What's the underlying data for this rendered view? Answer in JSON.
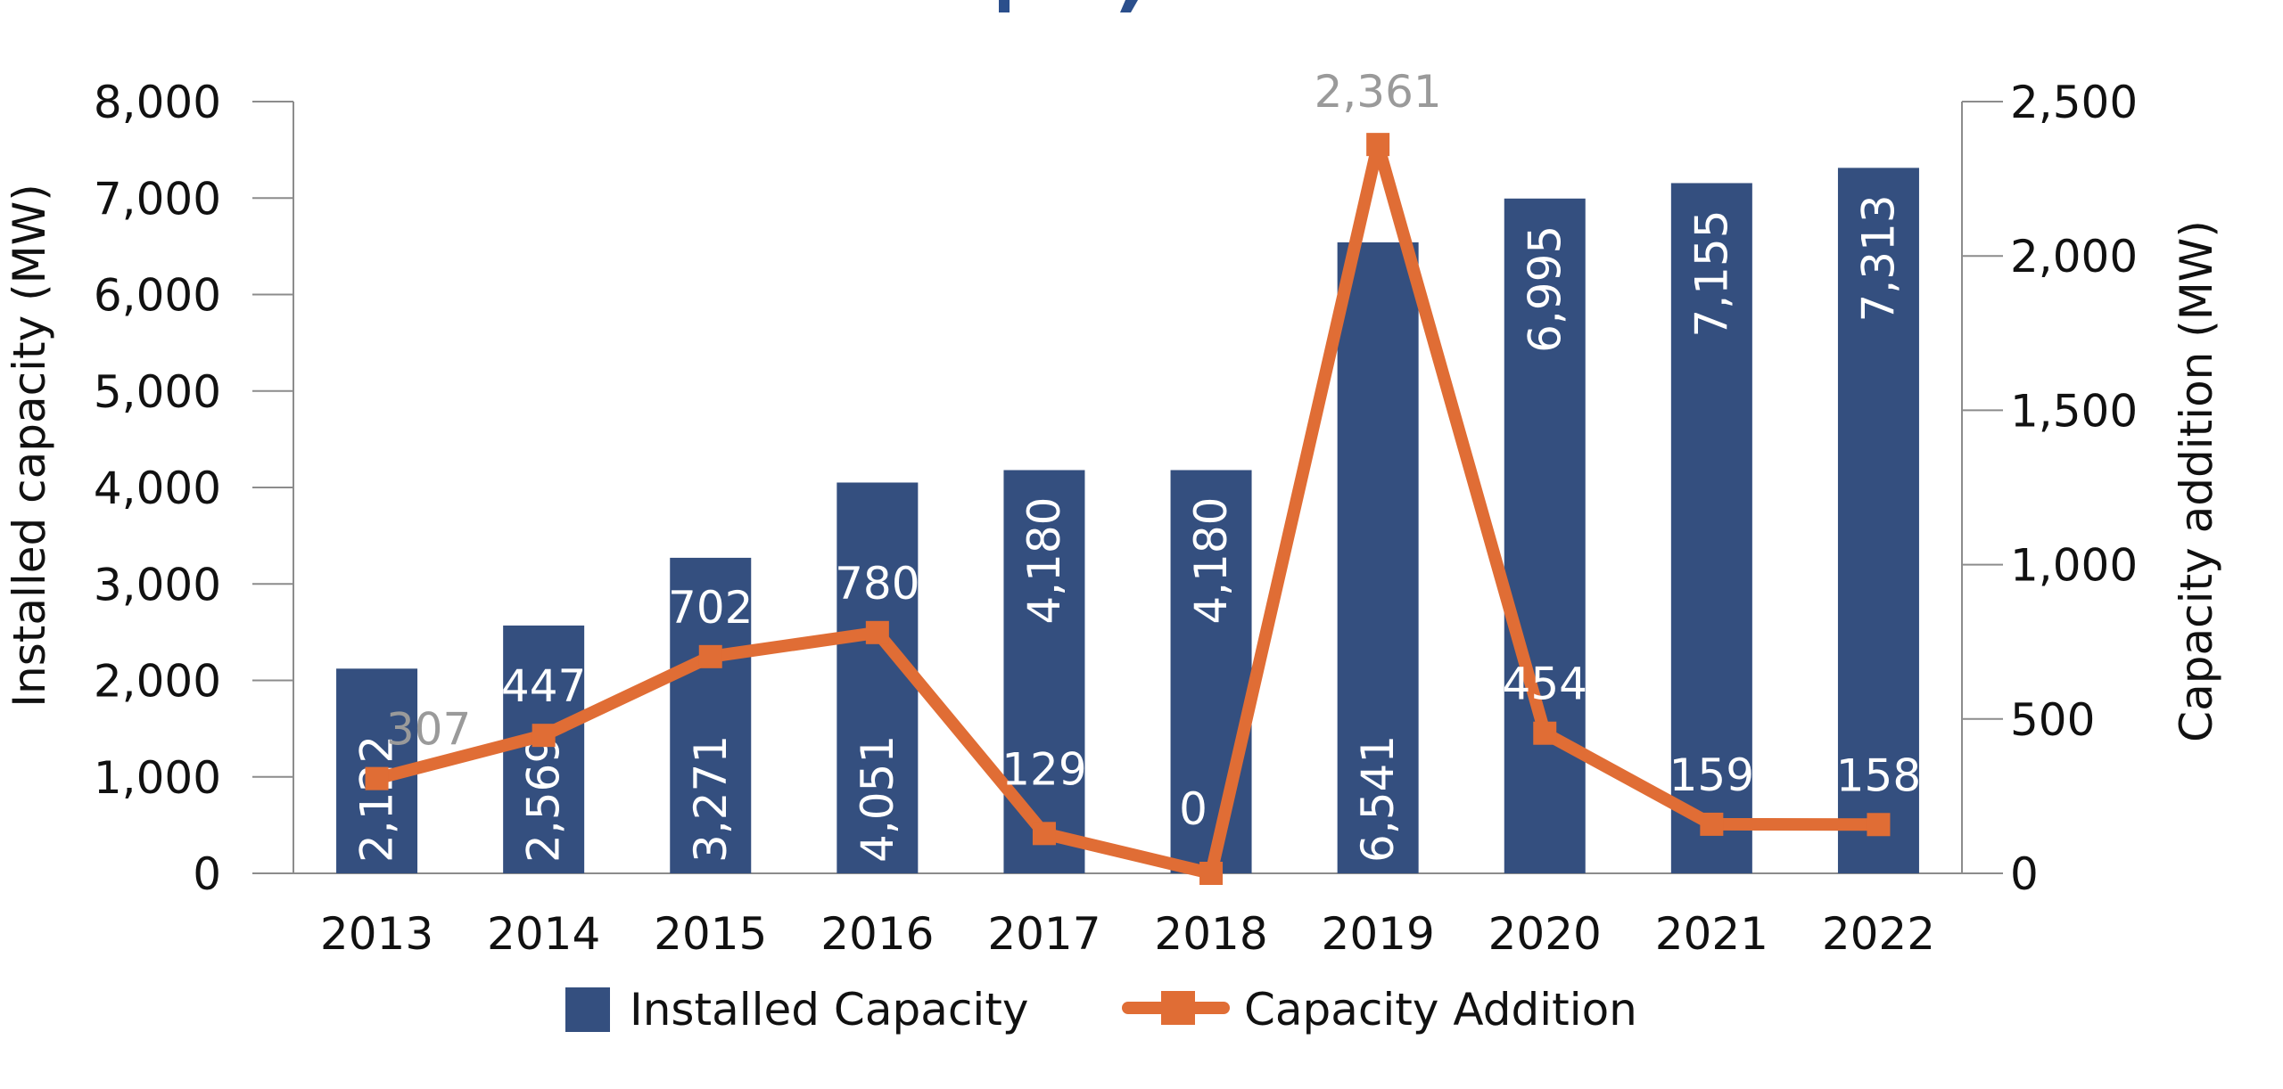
{
  "chart_data": {
    "type": "bar",
    "title": "",
    "categories": [
      "2013",
      "2014",
      "2015",
      "2016",
      "2017",
      "2018",
      "2019",
      "2020",
      "2021",
      "2022"
    ],
    "series": [
      {
        "name": "Installed Capacity",
        "type": "bar",
        "axis": "left",
        "color": "#344F7F",
        "values": [
          2122,
          2569,
          3271,
          4051,
          4180,
          4180,
          6541,
          6995,
          7155,
          7313
        ],
        "labels": [
          "2,122",
          "2,569",
          "3,271",
          "4,051",
          "4,180",
          "4,180",
          "6,541",
          "6,995",
          "7,155",
          "7,313"
        ]
      },
      {
        "name": "Capacity Addition",
        "type": "line",
        "axis": "right",
        "color": "#E06D35",
        "marker": "square",
        "values": [
          307,
          447,
          702,
          780,
          129,
          0,
          2361,
          454,
          159,
          158
        ],
        "labels": [
          "307",
          "447",
          "702",
          "780",
          "129",
          "0",
          "2,361",
          "454",
          "159",
          "158"
        ],
        "label_colors": [
          "#9a9a9a",
          "#ffffff",
          "#ffffff",
          "#ffffff",
          "#ffffff",
          "#ffffff",
          "#9a9a9a",
          "#ffffff",
          "#ffffff",
          "#ffffff"
        ]
      }
    ],
    "y_left": {
      "label": "Installed capacity (MW)",
      "range": [
        0,
        8000
      ],
      "ticks": [
        0,
        1000,
        2000,
        3000,
        4000,
        5000,
        6000,
        7000,
        8000
      ],
      "tick_labels": [
        "0",
        "1,000",
        "2,000",
        "3,000",
        "4,000",
        "5,000",
        "6,000",
        "7,000",
        "8,000"
      ]
    },
    "y_right": {
      "label": "Capacity addition (MW)",
      "range": [
        0,
        2500
      ],
      "ticks": [
        0,
        500,
        1000,
        1500,
        2000,
        2500
      ],
      "tick_labels": [
        "0",
        "500",
        "1,000",
        "1,500",
        "2,000",
        "2,500"
      ]
    },
    "xlabel": "",
    "grid": false,
    "legend": {
      "position": "bottom",
      "entries": [
        "Installed Capacity",
        "Capacity Addition"
      ]
    },
    "title_color": "#2B4F8C"
  }
}
